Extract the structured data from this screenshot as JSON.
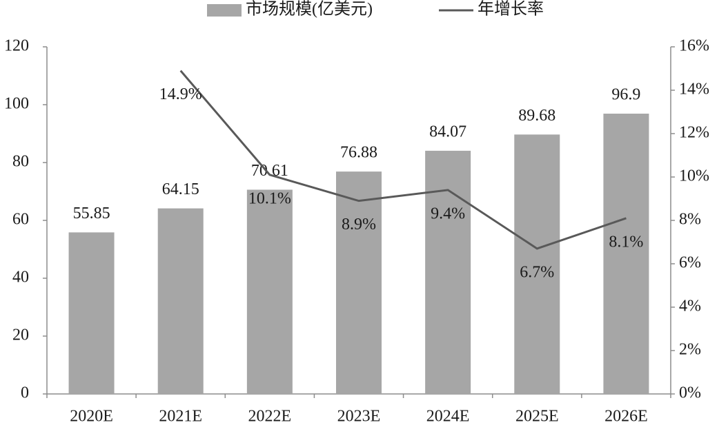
{
  "chart_data": {
    "type": "bar",
    "categories": [
      "2020E",
      "2021E",
      "2022E",
      "2023E",
      "2024E",
      "2025E",
      "2026E"
    ],
    "series": [
      {
        "name": "市场规模(亿美元)",
        "color": "#a6a6a6",
        "type": "bar",
        "values": [
          55.85,
          64.15,
          70.61,
          76.88,
          84.07,
          89.68,
          96.9
        ]
      },
      {
        "name": "年增长率",
        "color": "#595959",
        "type": "line",
        "axis": "y2",
        "values": [
          null,
          14.9,
          10.1,
          8.9,
          9.4,
          6.7,
          8.1
        ],
        "value_labels": [
          null,
          "14.9%",
          "10.1%",
          "8.9%",
          "9.4%",
          "6.7%",
          "8.1%"
        ]
      }
    ],
    "ylim": [
      0,
      120
    ],
    "yticks": [
      0,
      20,
      40,
      60,
      80,
      100,
      120
    ],
    "y2lim": [
      0,
      16
    ],
    "y2ticks": [
      {
        "value": 0,
        "label": "0%"
      },
      {
        "value": 2,
        "label": "2%"
      },
      {
        "value": 4,
        "label": "4%"
      },
      {
        "value": 6,
        "label": "6%"
      },
      {
        "value": 8,
        "label": "8%"
      },
      {
        "value": 10,
        "label": "10%"
      },
      {
        "value": 12,
        "label": "12%"
      },
      {
        "value": 14,
        "label": "14%"
      },
      {
        "value": 16,
        "label": "16%"
      }
    ],
    "legend": "top",
    "grid": false
  }
}
